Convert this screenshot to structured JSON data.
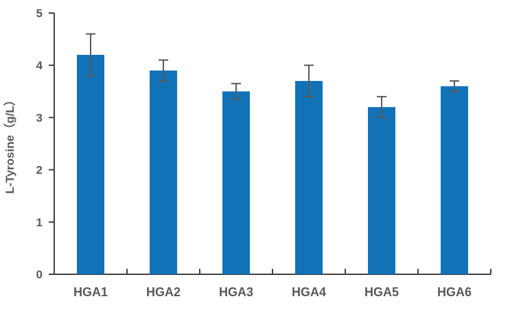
{
  "chart_data": {
    "type": "bar",
    "title": "",
    "categories": [
      "HGA1",
      "HGA2",
      "HGA3",
      "HGA4",
      "HGA5",
      "HGA6"
    ],
    "values": [
      4.2,
      3.9,
      3.5,
      3.7,
      3.2,
      3.6
    ],
    "errors": [
      0.4,
      0.2,
      0.15,
      0.3,
      0.2,
      0.1
    ],
    "xlabel": "",
    "ylabel": "L-Tyrosine（g/L）",
    "ylim": [
      0,
      5
    ],
    "yticks": [
      0,
      1,
      2,
      3,
      4,
      5
    ],
    "grid": false,
    "legend_position": "none",
    "error_bars": true,
    "colors": {
      "bar": "#1272B8",
      "error_bar": "#595959",
      "axis": "#404040",
      "label": "#595959",
      "background": "#ffffff"
    }
  }
}
